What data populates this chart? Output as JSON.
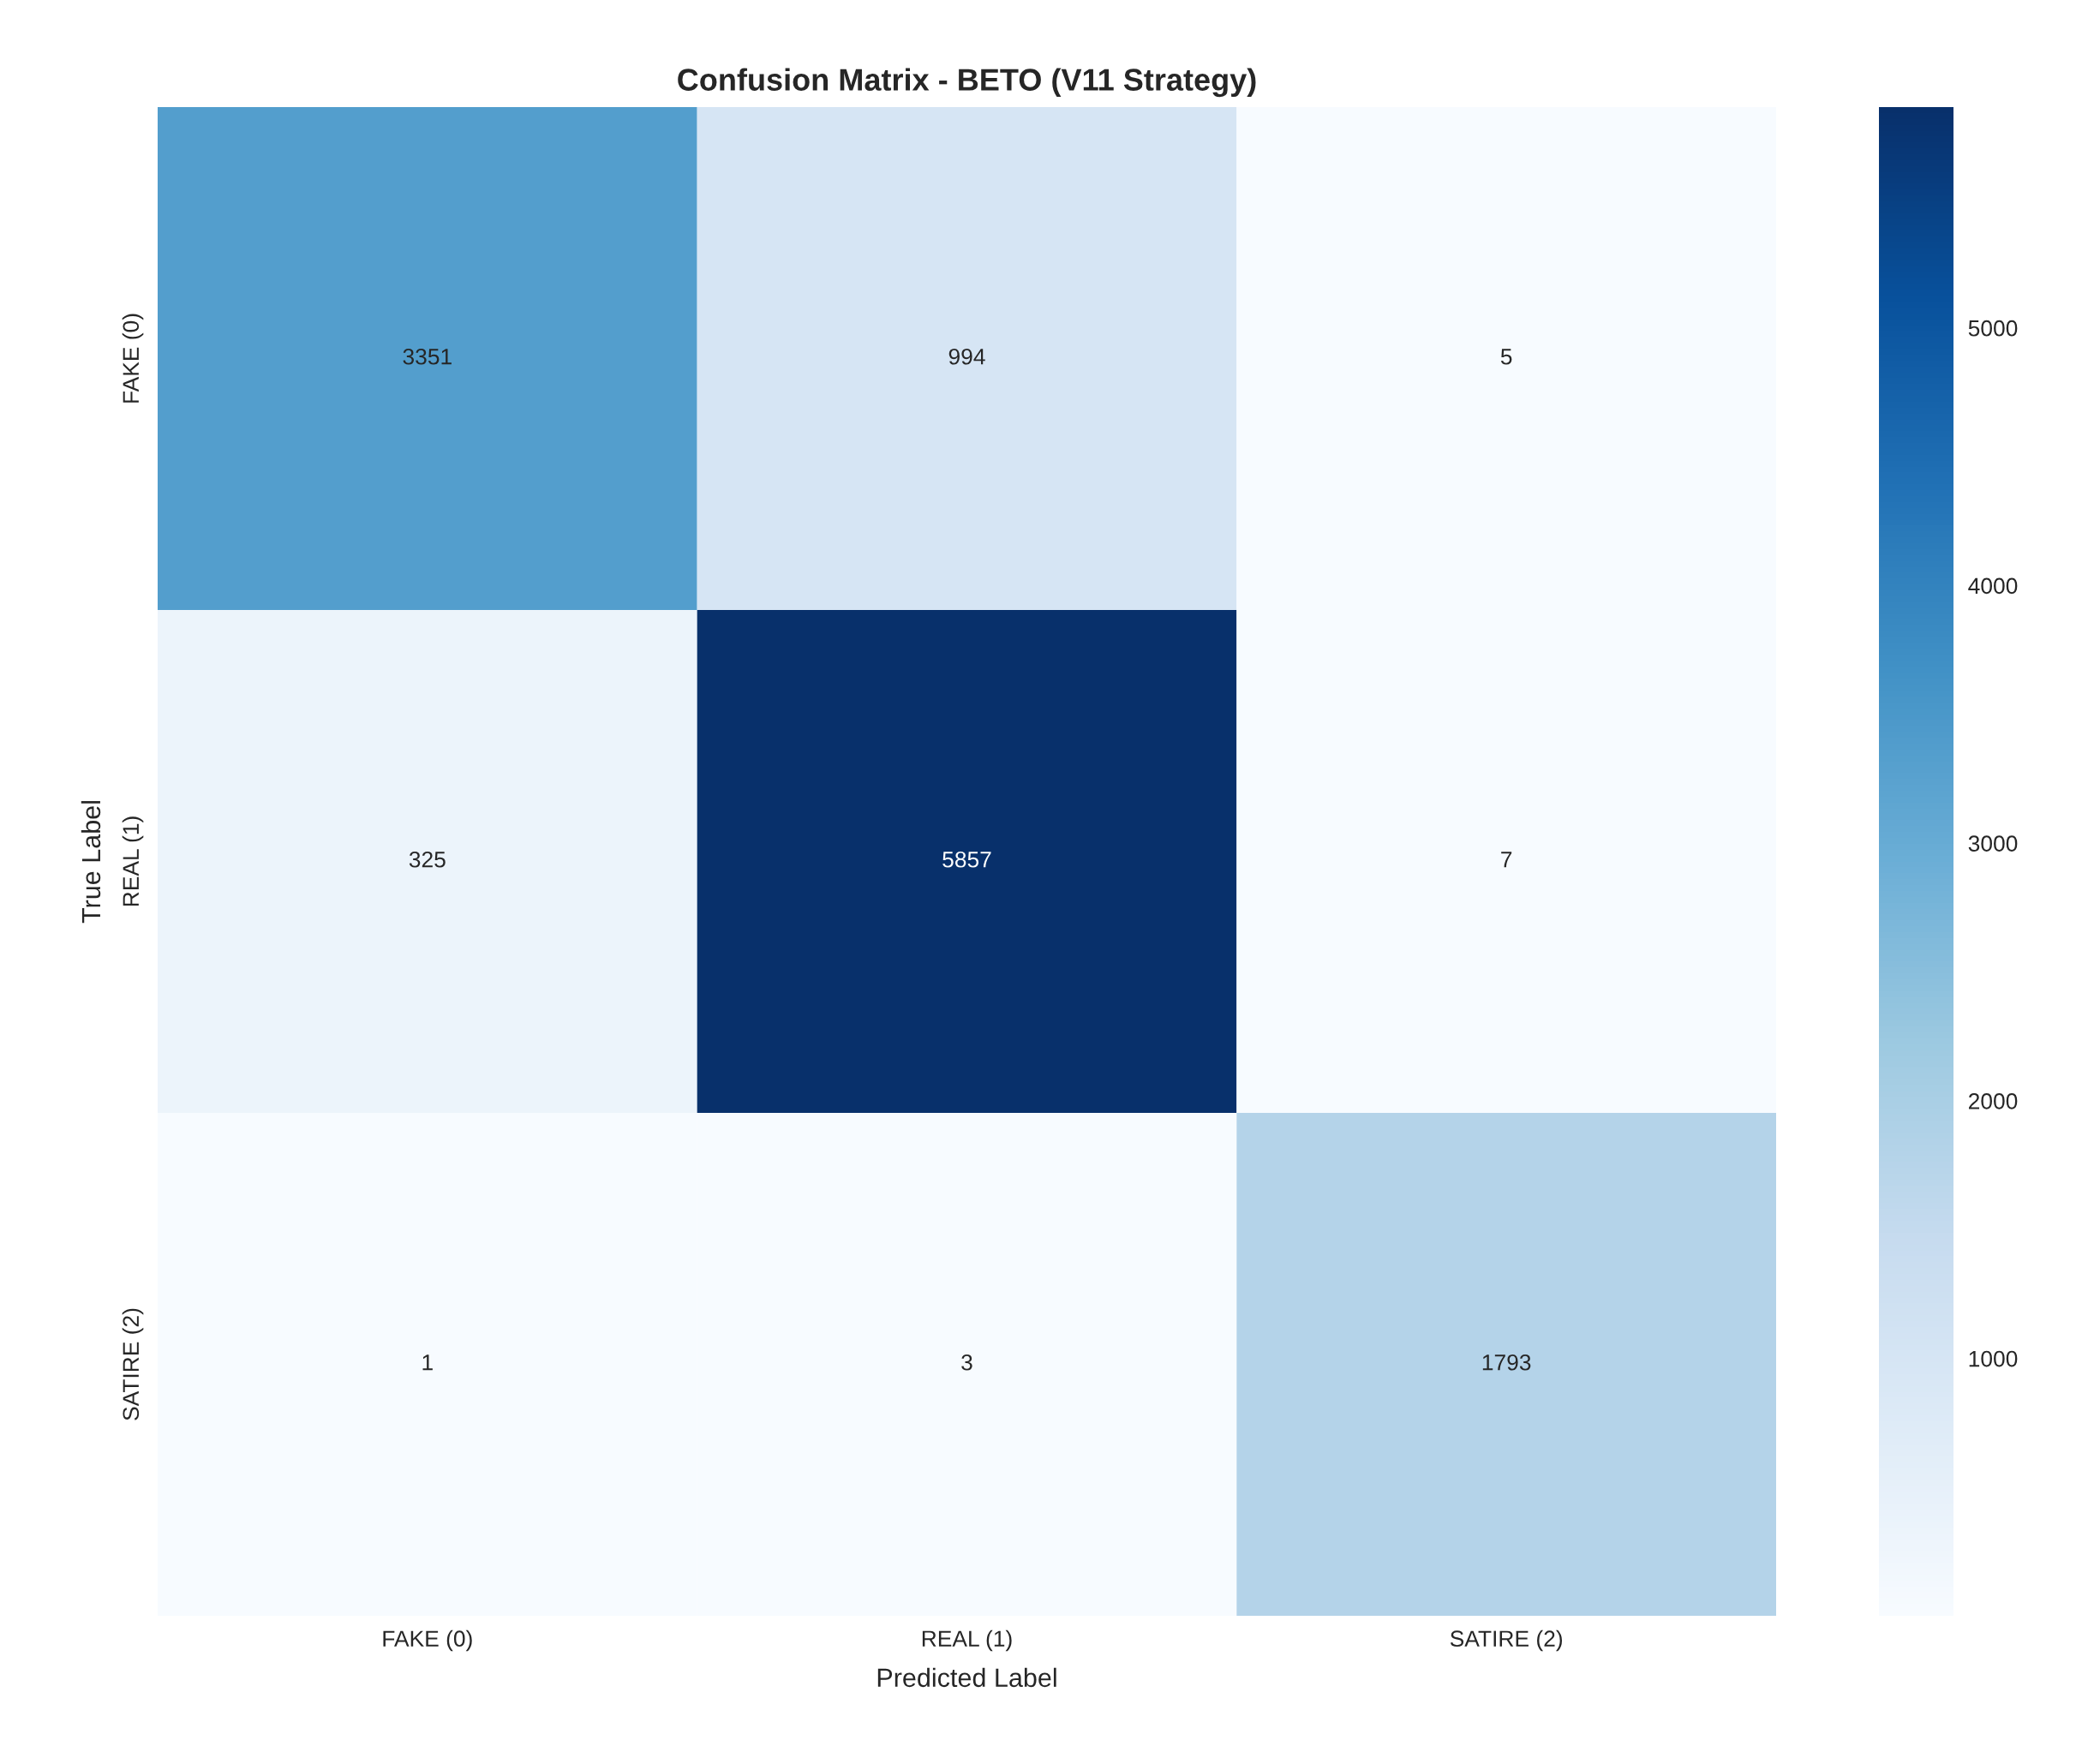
{
  "chart_data": {
    "type": "heatmap",
    "title": "Confusion Matrix - BETO (V11 Strategy)",
    "xlabel": "Predicted Label",
    "ylabel": "True Label",
    "categories": [
      "FAKE (0)",
      "REAL (1)",
      "SATIRE (2)"
    ],
    "y_categories": [
      "FAKE (0)",
      "REAL (1)",
      "SATIRE (2)"
    ],
    "cells": [
      [
        3351,
        994,
        5
      ],
      [
        325,
        5857,
        7
      ],
      [
        1,
        3,
        1793
      ]
    ],
    "data_labels": true,
    "clim": [
      1,
      5857
    ],
    "cticks": [
      1000,
      2000,
      3000,
      4000,
      5000
    ]
  }
}
